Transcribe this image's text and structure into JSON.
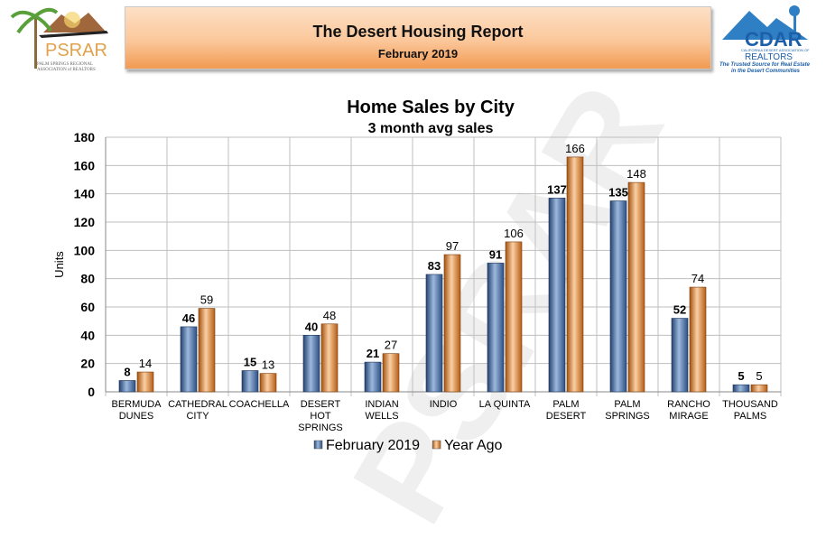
{
  "header": {
    "title": "The Desert Housing Report",
    "subtitle": "February 2019"
  },
  "logos": {
    "left": {
      "name": "PSRAR",
      "tagline": "PALM SPRINGS REGIONAL ASSOCIATION of REALTORS"
    },
    "right": {
      "name": "CDAR",
      "line1": "CALIFORNIA DESERT ASSOCIATION OF",
      "line2": "REALTORS",
      "tagline1": "The Trusted Source for Real Estate",
      "tagline2": "in the Desert Communities"
    }
  },
  "watermark": "PSRAR",
  "chart_data": {
    "type": "bar",
    "title": "Home Sales by City",
    "subtitle": "3 month avg sales",
    "ylabel": "Units",
    "xlabel": "",
    "ylim": [
      0,
      180
    ],
    "yticks": [
      0,
      20,
      40,
      60,
      80,
      100,
      120,
      140,
      160,
      180
    ],
    "grid": true,
    "legend": "bottom",
    "categories": [
      [
        "BERMUDA",
        "DUNES"
      ],
      [
        "CATHEDRAL",
        "CITY"
      ],
      [
        "COACHELLA"
      ],
      [
        "DESERT",
        "HOT",
        "SPRINGS"
      ],
      [
        "INDIAN",
        "WELLS"
      ],
      [
        "INDIO"
      ],
      [
        "LA QUINTA"
      ],
      [
        "PALM",
        "DESERT"
      ],
      [
        "PALM",
        "SPRINGS"
      ],
      [
        "RANCHO",
        "MIRAGE"
      ],
      [
        "THOUSAND",
        "PALMS"
      ]
    ],
    "series": [
      {
        "name": "February 2019",
        "color": "#3e6aa8",
        "values": [
          8,
          46,
          15,
          40,
          21,
          83,
          91,
          137,
          135,
          52,
          5
        ]
      },
      {
        "name": "Year Ago",
        "color": "#e8832a",
        "values": [
          14,
          59,
          13,
          48,
          27,
          97,
          106,
          166,
          148,
          74,
          5
        ]
      }
    ]
  }
}
